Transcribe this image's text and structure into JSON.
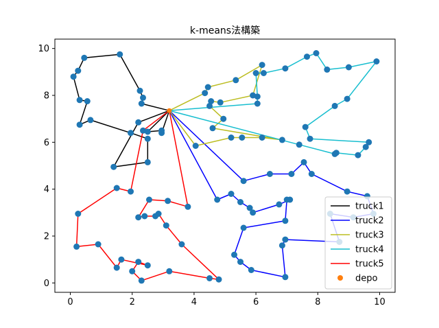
{
  "chart_data": {
    "type": "line",
    "title": "k-means法構築",
    "xlabel": "",
    "ylabel": "",
    "xlim": [
      -0.5,
      10.5
    ],
    "ylim": [
      -0.4,
      10.4
    ],
    "xticks": [
      0,
      2,
      4,
      6,
      8,
      10
    ],
    "yticks": [
      0,
      2,
      4,
      6,
      8,
      10
    ],
    "grid": false,
    "legend_placement": "lower-right",
    "depot": {
      "name": "depo",
      "x": 3.2,
      "y": 7.35,
      "color": "#ff7f0e"
    },
    "point_color": "#1f77b4",
    "series": [
      {
        "name": "truck1",
        "color": "#000000",
        "points": [
          [
            3.2,
            7.35
          ],
          [
            2.5,
            6.45
          ],
          [
            2.95,
            6.5
          ],
          [
            2.95,
            6.4
          ],
          [
            3.2,
            7.35
          ],
          [
            2.3,
            7.65
          ],
          [
            2.35,
            7.9
          ],
          [
            2.25,
            8.2
          ],
          [
            1.6,
            9.75
          ],
          [
            0.45,
            9.6
          ],
          [
            0.25,
            9.05
          ],
          [
            0.1,
            8.8
          ],
          [
            0.3,
            7.8
          ],
          [
            0.55,
            7.75
          ],
          [
            0.3,
            6.75
          ],
          [
            0.65,
            6.95
          ],
          [
            1.95,
            6.4
          ],
          [
            2.5,
            6.15
          ],
          [
            2.5,
            5.15
          ],
          [
            1.4,
            4.95
          ],
          [
            2.2,
            6.85
          ],
          [
            3.2,
            7.35
          ]
        ]
      },
      {
        "name": "truck2",
        "color": "#0000ff",
        "points": [
          [
            3.2,
            7.35
          ],
          [
            5.6,
            4.35
          ],
          [
            6.45,
            4.65
          ],
          [
            7.15,
            4.65
          ],
          [
            7.55,
            5.15
          ],
          [
            7.8,
            4.65
          ],
          [
            8.95,
            3.9
          ],
          [
            9.6,
            3.7
          ],
          [
            9.8,
            2.95
          ],
          [
            9.15,
            2.8
          ],
          [
            8.4,
            2.95
          ],
          [
            8.7,
            1.75
          ],
          [
            6.95,
            1.85
          ],
          [
            6.85,
            1.6
          ],
          [
            6.95,
            0.25
          ],
          [
            5.85,
            0.55
          ],
          [
            5.5,
            0.9
          ],
          [
            5.3,
            1.2
          ],
          [
            5.6,
            2.35
          ],
          [
            6.95,
            2.65
          ],
          [
            7.0,
            3.55
          ],
          [
            7.1,
            3.55
          ],
          [
            6.75,
            3.35
          ],
          [
            5.9,
            3.0
          ],
          [
            5.8,
            3.2
          ],
          [
            5.5,
            3.45
          ],
          [
            5.2,
            3.8
          ],
          [
            4.75,
            3.55
          ],
          [
            3.2,
            7.35
          ]
        ]
      },
      {
        "name": "truck3",
        "color": "#bcbd22",
        "points": [
          [
            3.2,
            7.35
          ],
          [
            4.35,
            8.1
          ],
          [
            4.45,
            8.35
          ],
          [
            5.35,
            8.65
          ],
          [
            6.2,
            9.3
          ],
          [
            5.9,
            8.0
          ],
          [
            4.85,
            7.7
          ],
          [
            4.55,
            7.75
          ],
          [
            4.5,
            7.55
          ],
          [
            4.95,
            7.0
          ],
          [
            4.6,
            6.6
          ],
          [
            6.85,
            6.1
          ],
          [
            6.2,
            6.2
          ],
          [
            5.55,
            6.2
          ],
          [
            5.2,
            6.2
          ],
          [
            4.05,
            5.85
          ],
          [
            3.2,
            7.35
          ]
        ]
      },
      {
        "name": "truck4",
        "color": "#17becf",
        "points": [
          [
            3.2,
            7.35
          ],
          [
            7.4,
            5.9
          ],
          [
            8.55,
            5.5
          ],
          [
            8.6,
            5.55
          ],
          [
            9.3,
            5.45
          ],
          [
            9.55,
            5.8
          ],
          [
            9.65,
            6.0
          ],
          [
            7.75,
            6.15
          ],
          [
            7.6,
            6.65
          ],
          [
            8.55,
            7.55
          ],
          [
            8.95,
            7.85
          ],
          [
            9.9,
            9.45
          ],
          [
            9.0,
            9.2
          ],
          [
            8.3,
            9.1
          ],
          [
            7.95,
            9.8
          ],
          [
            7.65,
            9.65
          ],
          [
            6.95,
            9.15
          ],
          [
            6.25,
            8.95
          ],
          [
            6.0,
            8.95
          ],
          [
            6.05,
            7.95
          ],
          [
            6.05,
            7.65
          ],
          [
            3.2,
            7.35
          ]
        ]
      },
      {
        "name": "truck5",
        "color": "#ff0000",
        "points": [
          [
            3.2,
            7.35
          ],
          [
            2.35,
            6.5
          ],
          [
            1.95,
            3.9
          ],
          [
            1.5,
            4.05
          ],
          [
            0.25,
            2.95
          ],
          [
            0.2,
            1.55
          ],
          [
            0.9,
            1.65
          ],
          [
            1.5,
            0.65
          ],
          [
            1.65,
            1.0
          ],
          [
            2.5,
            0.75
          ],
          [
            2.2,
            0.9
          ],
          [
            2.0,
            0.5
          ],
          [
            2.3,
            0.1
          ],
          [
            3.2,
            0.5
          ],
          [
            4.5,
            0.2
          ],
          [
            4.8,
            0.15
          ],
          [
            3.6,
            1.65
          ],
          [
            3.1,
            2.45
          ],
          [
            2.85,
            2.95
          ],
          [
            2.75,
            2.85
          ],
          [
            2.4,
            2.85
          ],
          [
            2.2,
            2.8
          ],
          [
            2.55,
            3.55
          ],
          [
            3.15,
            3.5
          ],
          [
            3.8,
            3.25
          ],
          [
            3.2,
            7.35
          ]
        ]
      }
    ]
  }
}
